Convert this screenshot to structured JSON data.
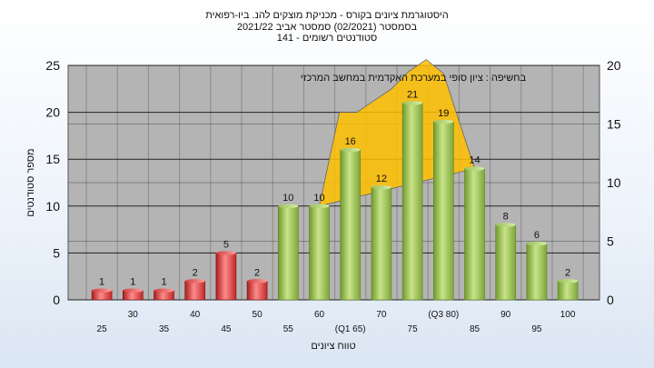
{
  "title_lines": [
    "היסטוגרמת ציונים בקורס - מכניקת מוצקים להנ. ביו-רפואית",
    "בסמסטר  (02/2021)  סמסטר אביב 2021/22",
    "סטודנטים רשומים - 141"
  ],
  "chart_data": {
    "type": "bar",
    "xlabel": "טווח ציונים",
    "ylabel": "מספר סטודנטים",
    "ylim": [
      0,
      25
    ],
    "yticks": [
      0,
      5,
      10,
      15,
      20,
      25
    ],
    "y2lim": [
      0,
      20
    ],
    "y2ticks": [
      0,
      5,
      10,
      15,
      20
    ],
    "grid": true,
    "categories": [
      "25",
      "30",
      "35",
      "40",
      "45",
      "50",
      "55",
      "60",
      "(Q1 65)",
      "70",
      "75",
      "(Q3 80)",
      "85",
      "90",
      "95",
      "100"
    ],
    "values": [
      1,
      1,
      1,
      2,
      5,
      2,
      10,
      10,
      16,
      12,
      21,
      19,
      14,
      8,
      6,
      2
    ],
    "bar_colors": [
      "red",
      "red",
      "red",
      "red",
      "red",
      "red",
      "green",
      "green",
      "green",
      "green",
      "green",
      "green",
      "green",
      "green",
      "green",
      "green"
    ],
    "overlay": {
      "type": "area",
      "label": "בחשיפה : ציון סופי במערכת האקדמית במחשב המרכזי",
      "from_category": "(Q1 65)",
      "to_category": "(Q3 80)",
      "values": [
        16,
        16,
        17,
        18,
        19.5,
        20.5,
        19.3
      ],
      "color": "#ffc000"
    },
    "colors": {
      "green_bar": "#8fb84a",
      "red_bar": "#d63a3a",
      "plot_bg": "#b4b4b4",
      "overlay": "#ffc000"
    }
  }
}
